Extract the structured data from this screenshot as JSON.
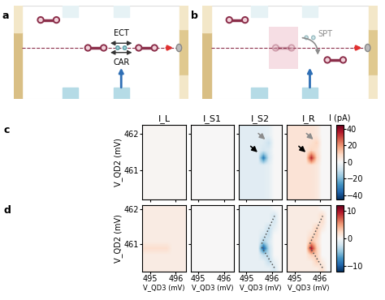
{
  "schematics": [
    {
      "label": "a",
      "texts": [
        "ECT",
        "CAR"
      ]
    },
    {
      "label": "b",
      "texts": [
        "SPT"
      ]
    }
  ],
  "chart_data": [
    {
      "type": "heatmap",
      "label": "c",
      "xlim": [
        494.7,
        496.4
      ],
      "ylim": [
        460.2,
        462.25
      ],
      "xticks": [
        495,
        496
      ],
      "yticks": [
        461,
        462
      ],
      "ylabel": "V_QD2 (mV)",
      "colorbar": {
        "range": [
          -45,
          45
        ],
        "ticks": [
          {
            "value": -40,
            "label": "−40"
          },
          {
            "value": -20,
            "label": "−20"
          },
          0,
          20,
          40
        ],
        "label": "I (pA)"
      },
      "panels": [
        {
          "title": "I_L",
          "tick_labels": "y",
          "cells": [
            [
              1,
              1,
              1,
              1,
              1,
              1,
              1,
              1
            ],
            [
              1,
              1,
              1,
              1,
              1,
              1,
              1,
              1
            ],
            [
              1,
              1,
              1,
              1,
              1,
              1,
              1,
              1
            ],
            [
              1,
              1,
              1,
              1,
              1,
              1,
              1,
              1
            ],
            [
              1,
              1,
              1,
              1,
              1,
              1,
              1,
              1
            ],
            [
              1,
              1,
              1,
              1,
              1,
              1,
              1,
              1
            ],
            [
              1,
              1,
              1,
              1,
              1,
              1,
              1,
              1
            ],
            [
              1,
              1,
              1,
              1,
              1,
              1,
              1,
              1
            ],
            [
              1,
              1,
              1,
              1,
              1,
              1,
              1,
              1
            ],
            [
              1,
              1,
              1,
              1,
              1,
              1,
              1,
              1
            ]
          ]
        },
        {
          "title": "I_S1",
          "tick_labels": false,
          "cells": [
            [
              0,
              0,
              0,
              0,
              0,
              0,
              0,
              0
            ],
            [
              0,
              0,
              0,
              0,
              0,
              0,
              0,
              0
            ],
            [
              0,
              0,
              0,
              0,
              0,
              0,
              0,
              0
            ],
            [
              0,
              0,
              0,
              0,
              0,
              0,
              0,
              0
            ],
            [
              0,
              0,
              0,
              0,
              0,
              0,
              0,
              0
            ],
            [
              0,
              0,
              0,
              0,
              0,
              0,
              0,
              0
            ],
            [
              0,
              0,
              0,
              0,
              0,
              0,
              0,
              0
            ],
            [
              0,
              0,
              0,
              0,
              0,
              0,
              0,
              0
            ],
            [
              0,
              0,
              0,
              0,
              0,
              0,
              0,
              0
            ],
            [
              0,
              0,
              0,
              0,
              0,
              0,
              0,
              0
            ]
          ]
        },
        {
          "title": "I_S2",
          "tick_labels": false,
          "arrows": [
            {
              "x": 495.5,
              "y": 461.45,
              "color": "#000000"
            },
            {
              "x": 495.8,
              "y": 461.8,
              "color": "#8c8c8c"
            }
          ],
          "cells": [
            [
              -5,
              -5,
              -5,
              -5,
              -5,
              -4,
              0,
              0
            ],
            [
              -5,
              -5,
              -5,
              -5,
              -5,
              -4,
              0,
              0
            ],
            [
              -5,
              -5,
              -5,
              -5,
              -6,
              -10,
              0,
              0
            ],
            [
              -5,
              -5,
              -5,
              -5,
              -8,
              -6,
              0,
              0
            ],
            [
              -5,
              -5,
              -5,
              -5,
              -32,
              -8,
              0,
              0
            ],
            [
              -5,
              -5,
              -5,
              -5,
              -5,
              -4,
              0,
              0
            ],
            [
              -5,
              -5,
              -5,
              -5,
              -5,
              -4,
              0,
              0
            ],
            [
              -5,
              -5,
              -5,
              -5,
              -5,
              -4,
              0,
              0
            ],
            [
              -5,
              -5,
              -5,
              -5,
              -5,
              -4,
              0,
              0
            ],
            [
              -5,
              -5,
              -5,
              -5,
              -5,
              -4,
              0,
              0
            ]
          ]
        },
        {
          "title": "I_R",
          "tick_labels": false,
          "arrows": [
            {
              "x": 495.5,
              "y": 461.45,
              "color": "#000000"
            },
            {
              "x": 495.8,
              "y": 461.8,
              "color": "#8c8c8c"
            }
          ],
          "cells": [
            [
              6,
              6,
              6,
              6,
              6,
              5,
              0,
              0
            ],
            [
              6,
              6,
              6,
              6,
              6,
              5,
              0,
              0
            ],
            [
              6,
              6,
              6,
              6,
              7,
              10,
              0,
              0
            ],
            [
              6,
              6,
              6,
              6,
              10,
              7,
              0,
              0
            ],
            [
              6,
              6,
              6,
              6,
              35,
              10,
              0,
              0
            ],
            [
              6,
              6,
              6,
              6,
              6,
              5,
              0,
              0
            ],
            [
              6,
              6,
              6,
              6,
              6,
              5,
              0,
              0
            ],
            [
              6,
              6,
              6,
              6,
              6,
              5,
              0,
              0
            ],
            [
              6,
              6,
              6,
              6,
              6,
              5,
              0,
              0
            ],
            [
              6,
              6,
              6,
              6,
              6,
              5,
              0,
              0
            ]
          ]
        }
      ]
    },
    {
      "type": "heatmap",
      "label": "d",
      "xlim": [
        494.7,
        496.4
      ],
      "ylim": [
        460.2,
        462.1
      ],
      "xticks": [
        495,
        496
      ],
      "yticks": [
        461,
        462
      ],
      "ylabel": "V_QD2 (mV)",
      "xlabel": "V_QD3 (mV)",
      "colorbar": {
        "range": [
          -12,
          12
        ],
        "ticks": [
          {
            "value": -10,
            "label": "−10"
          },
          0,
          10
        ]
      },
      "panels": [
        {
          "tick_labels": true,
          "cells": [
            [
              1,
              1,
              1,
              1,
              1,
              1,
              1,
              1
            ],
            [
              1,
              1,
              1,
              1,
              1,
              1,
              1,
              1
            ],
            [
              1,
              1,
              1,
              1,
              1,
              1,
              1,
              1
            ],
            [
              1,
              1,
              1,
              1,
              1,
              1,
              1,
              1
            ],
            [
              1,
              1,
              1,
              1,
              1,
              1,
              1,
              1
            ],
            [
              1,
              1,
              1,
              1,
              1,
              1,
              1,
              1
            ],
            [
              2,
              2,
              2,
              2,
              2,
              1,
              1,
              1
            ],
            [
              1,
              1,
              1,
              1,
              1,
              1,
              1,
              1
            ],
            [
              1,
              1,
              1,
              1,
              1,
              1,
              1,
              1
            ],
            [
              1,
              1,
              1,
              1,
              1,
              1,
              1,
              1
            ]
          ]
        },
        {
          "tick_labels": "x",
          "cells": [
            [
              0,
              0,
              0,
              0,
              0,
              0,
              0,
              0
            ],
            [
              0,
              0,
              0,
              0,
              0,
              0,
              0,
              0
            ],
            [
              0,
              0,
              0,
              0,
              0,
              0,
              0,
              0
            ],
            [
              0,
              0,
              0,
              0,
              0,
              0,
              0,
              0
            ],
            [
              0,
              0,
              0,
              0,
              0,
              0,
              0,
              0
            ],
            [
              0,
              0,
              0,
              0,
              0,
              0,
              0,
              0
            ],
            [
              0,
              0,
              0,
              0,
              0,
              0,
              0,
              0
            ],
            [
              0,
              0,
              0,
              0,
              0,
              0,
              0,
              0
            ],
            [
              0,
              0,
              0,
              0,
              0,
              0,
              0,
              0
            ],
            [
              0,
              0,
              0,
              0,
              0,
              0,
              0,
              0
            ]
          ]
        },
        {
          "tick_labels": "x",
          "guides": [
            {
              "x": [
                495.6,
                496.1
              ],
              "y": [
                461.0,
                461.8
              ]
            },
            {
              "x": [
                495.6,
                496.1
              ],
              "y": [
                460.9,
                460.3
              ]
            }
          ],
          "cells": [
            [
              -1,
              -1,
              -1,
              -1,
              -1,
              -1,
              0,
              0
            ],
            [
              -1,
              -1,
              -1,
              -1,
              -1,
              -1,
              -2,
              0
            ],
            [
              -1,
              -1,
              -1,
              -1,
              -1,
              -1,
              -2,
              0
            ],
            [
              -1,
              -1,
              -1,
              -1,
              -1,
              -3,
              -1,
              0
            ],
            [
              -1,
              -1,
              -1,
              -1,
              -2,
              -3,
              0,
              0
            ],
            [
              -1,
              -1,
              -1,
              -1,
              -4,
              -2,
              0,
              0
            ],
            [
              -1,
              -1,
              -1,
              -1,
              -10,
              -3,
              0,
              0
            ],
            [
              -1,
              -1,
              -1,
              -1,
              -3,
              -3,
              0,
              0
            ],
            [
              -1,
              -1,
              -1,
              -1,
              -1,
              -3,
              -1,
              0
            ],
            [
              -1,
              -1,
              -1,
              -1,
              -1,
              -1,
              -2,
              0
            ]
          ]
        },
        {
          "tick_labels": "x",
          "guides": [
            {
              "x": [
                495.6,
                496.1
              ],
              "y": [
                461.0,
                461.8
              ]
            },
            {
              "x": [
                495.6,
                496.1
              ],
              "y": [
                460.9,
                460.3
              ]
            }
          ],
          "cells": [
            [
              1,
              1,
              1,
              1,
              1,
              1,
              0,
              0
            ],
            [
              1,
              1,
              1,
              1,
              1,
              1,
              2,
              0
            ],
            [
              1,
              1,
              1,
              1,
              1,
              1,
              2,
              0
            ],
            [
              1,
              1,
              1,
              1,
              1,
              3,
              1,
              0
            ],
            [
              1,
              1,
              1,
              1,
              2,
              3,
              0,
              0
            ],
            [
              1,
              1,
              1,
              1,
              4,
              2,
              0,
              0
            ],
            [
              1,
              1,
              1,
              1,
              10,
              3,
              0,
              0
            ],
            [
              1,
              1,
              1,
              1,
              3,
              3,
              0,
              0
            ],
            [
              1,
              1,
              1,
              1,
              1,
              3,
              1,
              0
            ],
            [
              1,
              1,
              1,
              1,
              1,
              1,
              2,
              0
            ]
          ]
        }
      ]
    }
  ]
}
